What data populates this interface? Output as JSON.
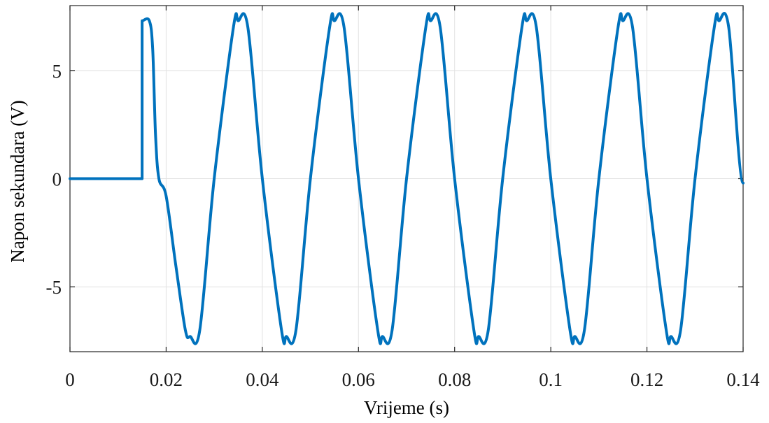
{
  "chart_data": {
    "type": "line",
    "title": "",
    "xlabel": "Vrijeme (s)",
    "ylabel": "Napon sekundara (V)",
    "xlim": [
      0,
      0.14
    ],
    "ylim": [
      -8,
      8
    ],
    "grid": true,
    "x_ticks": [
      0,
      0.02,
      0.04,
      0.06,
      0.08,
      0.1,
      0.12,
      0.14
    ],
    "x_tick_labels": [
      "0",
      "0.02",
      "0.04",
      "0.06",
      "0.08",
      "0.1",
      "0.12",
      "0.14"
    ],
    "y_ticks": [
      5,
      0,
      -5
    ],
    "y_tick_labels": [
      "5",
      "0",
      "-5"
    ],
    "line_color": "#0072bd",
    "series": [
      {
        "x": [
          0,
          0.015,
          0.015,
          0.0165,
          0.0172,
          0.0178,
          0.0185,
          0.02,
          0.022,
          0.024,
          0.025,
          0.027,
          0.03,
          0.034,
          0.035,
          0.037,
          0.04,
          0.044,
          0.045,
          0.047,
          0.05,
          0.054,
          0.055,
          0.057,
          0.06,
          0.064,
          0.065,
          0.067,
          0.07,
          0.074,
          0.075,
          0.077,
          0.08,
          0.084,
          0.085,
          0.087,
          0.09,
          0.094,
          0.095,
          0.097,
          0.1,
          0.104,
          0.105,
          0.107,
          0.11,
          0.114,
          0.115,
          0.117,
          0.12,
          0.124,
          0.125,
          0.127,
          0.13,
          0.134,
          0.135,
          0.137,
          0.14
        ],
        "y": [
          0,
          0,
          7.3,
          7.3,
          6.0,
          2.0,
          0,
          -0.8,
          -4.0,
          -7.0,
          -7.3,
          -7.0,
          0,
          7.0,
          7.3,
          7.0,
          0,
          -7.0,
          -7.3,
          -7.0,
          0,
          7.0,
          7.3,
          7.0,
          0,
          -7.0,
          -7.3,
          -7.0,
          0,
          7.0,
          7.3,
          7.0,
          0,
          -7.0,
          -7.3,
          -7.0,
          0,
          7.0,
          7.3,
          7.0,
          0,
          -7.0,
          -7.3,
          -7.0,
          0,
          7.0,
          7.3,
          7.0,
          0,
          -7.0,
          -7.3,
          -7.0,
          0,
          7.0,
          7.3,
          7.0,
          -0.2
        ]
      }
    ]
  }
}
